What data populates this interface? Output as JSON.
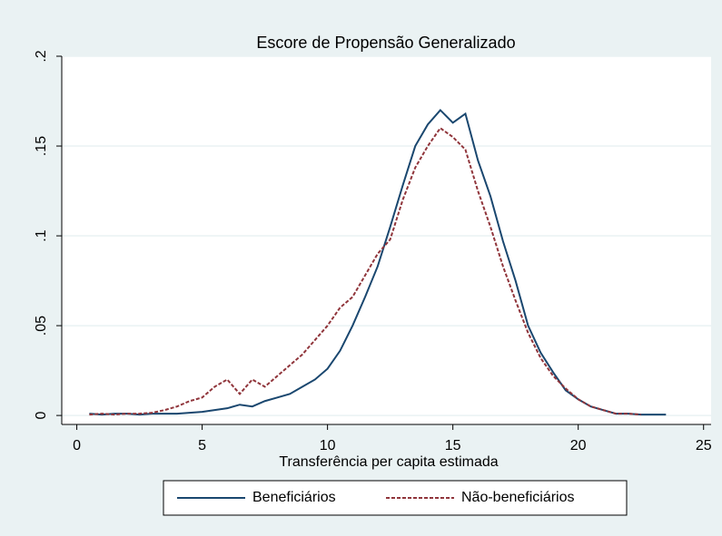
{
  "chart_data": {
    "type": "line",
    "title": "Escore de Propensão Generalizado",
    "x_label": "Transferência per capita estimada",
    "x": [
      0.5,
      1,
      1.5,
      2,
      2.5,
      3,
      3.5,
      4,
      4.5,
      5,
      5.5,
      6,
      6.5,
      7,
      7.5,
      8,
      8.5,
      9,
      9.5,
      10,
      10.5,
      11,
      11.5,
      12,
      12.5,
      13,
      13.5,
      14,
      14.5,
      15,
      15.5,
      16,
      16.5,
      17,
      17.5,
      18,
      18.5,
      19,
      19.5,
      20,
      20.5,
      21,
      21.5,
      22,
      22.5,
      23,
      23.5
    ],
    "series": [
      {
        "name": "Beneficiários",
        "color": "#1a476f",
        "dash": false,
        "values": [
          0.001,
          0.0005,
          0.001,
          0.001,
          0.0005,
          0.001,
          0.001,
          0.001,
          0.0015,
          0.002,
          0.003,
          0.004,
          0.006,
          0.005,
          0.008,
          0.01,
          0.012,
          0.016,
          0.02,
          0.026,
          0.036,
          0.05,
          0.066,
          0.083,
          0.105,
          0.128,
          0.15,
          0.162,
          0.17,
          0.163,
          0.168,
          0.142,
          0.122,
          0.097,
          0.075,
          0.05,
          0.035,
          0.024,
          0.014,
          0.009,
          0.005,
          0.003,
          0.001,
          0.001,
          0.0005,
          0.0005,
          0.0005
        ]
      },
      {
        "name": "Não-beneficiários",
        "color": "#90353b",
        "dash": true,
        "values": [
          0.0005,
          0.001,
          0.0005,
          0.001,
          0.001,
          0.0015,
          0.003,
          0.005,
          0.008,
          0.01,
          0.016,
          0.02,
          0.012,
          0.02,
          0.016,
          0.022,
          0.028,
          0.034,
          0.042,
          0.05,
          0.06,
          0.066,
          0.078,
          0.09,
          0.098,
          0.12,
          0.138,
          0.15,
          0.16,
          0.155,
          0.148,
          0.125,
          0.105,
          0.083,
          0.064,
          0.046,
          0.032,
          0.022,
          0.015,
          0.009,
          0.005,
          0.003,
          0.001,
          0.001,
          0.0005,
          null,
          null
        ]
      }
    ],
    "xlim": [
      -0.6,
      25.3
    ],
    "xticks": [
      0,
      5,
      10,
      15,
      20,
      25
    ],
    "ylim": [
      -0.005,
      0.2
    ],
    "yticks": [
      0,
      {
        "value": 0.05,
        "label": ".05"
      },
      {
        "value": 0.1,
        "label": ".1"
      },
      {
        "value": 0.15,
        "label": ".15"
      },
      {
        "value": 0.2,
        "label": ".2"
      }
    ],
    "grid": true,
    "legend": "bottom"
  }
}
